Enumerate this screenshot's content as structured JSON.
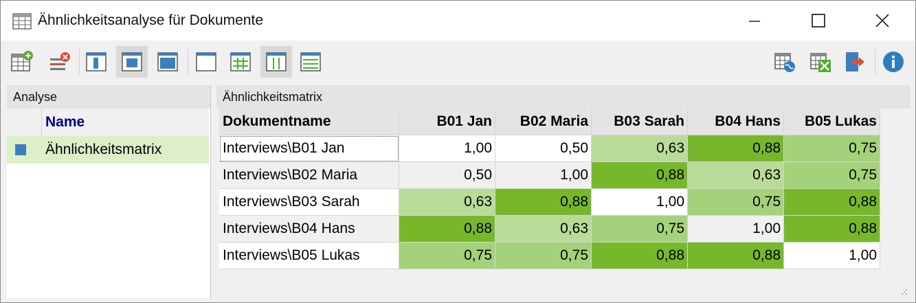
{
  "window": {
    "title": "Ähnlichkeitsanalyse für Dokumente",
    "controls": {
      "minimize": "minimize-icon",
      "maximize": "maximize-icon",
      "close": "close-icon"
    }
  },
  "toolbar": {
    "left_icons": [
      "add-table-icon",
      "remove-row-icon",
      "layout-left-icon",
      "layout-center-icon",
      "layout-full-icon",
      "blank-table-icon",
      "grid-lines-icon",
      "vertical-lines-icon",
      "horizontal-lines-icon"
    ],
    "right_icons": [
      "web-export-icon",
      "excel-export-icon",
      "export-icon",
      "info-icon"
    ]
  },
  "left_panel": {
    "header": "Analyse",
    "column_header": "Name",
    "items": [
      {
        "label": "Ähnlichkeitsmatrix"
      }
    ]
  },
  "right_panel": {
    "header": "Ähnlichkeitsmatrix",
    "table": {
      "columns": [
        "Dokumentname",
        "B01 Jan",
        "B02 Maria",
        "B03 Sarah",
        "B04 Hans",
        "B05 Lukas"
      ],
      "rows": [
        {
          "name": "Interviews\\B01 Jan",
          "values": [
            "1,00",
            "0,50",
            "0,63",
            "0,88",
            "0,75"
          ]
        },
        {
          "name": "Interviews\\B02 Maria",
          "values": [
            "0,50",
            "1,00",
            "0,88",
            "0,63",
            "0,75"
          ]
        },
        {
          "name": "Interviews\\B03 Sarah",
          "values": [
            "0,63",
            "0,88",
            "1,00",
            "0,75",
            "0,88"
          ]
        },
        {
          "name": "Interviews\\B04 Hans",
          "values": [
            "0,88",
            "0,63",
            "0,75",
            "1,00",
            "0,88"
          ]
        },
        {
          "name": "Interviews\\B05 Lukas",
          "values": [
            "0,75",
            "0,75",
            "0,88",
            "0,88",
            "1,00"
          ]
        }
      ]
    }
  },
  "colors": {
    "high": "#76b82a",
    "mid": "#a4d27a",
    "mid_light": "#b8dc97",
    "light": "#d2e8bd",
    "row_alt": "#f0f0f0",
    "name_header": "#000080",
    "selection": "#dcefc8"
  }
}
